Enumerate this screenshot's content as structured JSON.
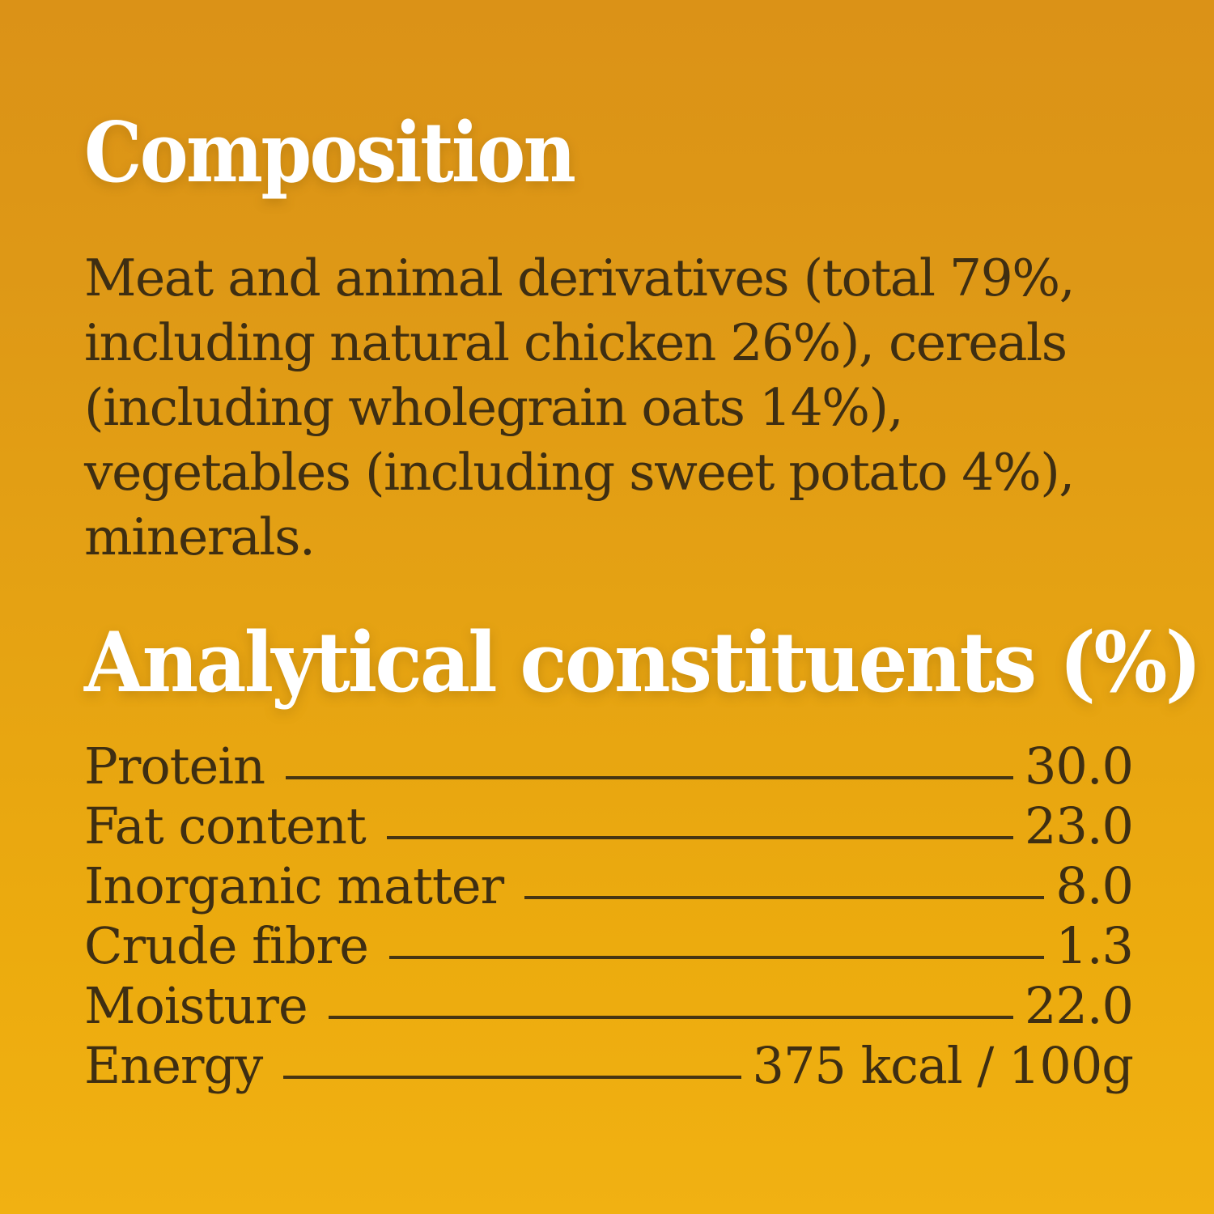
{
  "panel": {
    "composition": {
      "title": "Composition",
      "paragraph": "Meat and animal derivatives (total 79%, including natural chicken 26%), cereals (including wholegrain oats 14%), vegetables (including sweet potato 4%), minerals.",
      "lines": [
        "Meat and animal derivatives (total 79%,",
        "including natural chicken 26%), cereals",
        "(including wholegrain oats 14%),",
        "vegetables (including sweet potato 4%),",
        "minerals."
      ]
    },
    "analytical": {
      "title": "Analytical constituents (%)",
      "rows": [
        {
          "label": "Protein",
          "value": "30.0"
        },
        {
          "label": "Fat content",
          "value": "23.0"
        },
        {
          "label": "Inorganic matter",
          "value": "8.0"
        },
        {
          "label": "Crude fibre",
          "value": "1.3"
        },
        {
          "label": "Moisture",
          "value": "22.0"
        },
        {
          "label": "Energy",
          "value": "375 kcal / 100g"
        }
      ]
    }
  },
  "colors": {
    "background_top": "#DB9217",
    "background_bottom": "#F1B112",
    "body_text": "#3E2E12",
    "heading_text": "#FFFFFF",
    "leader_line": "#463512"
  }
}
